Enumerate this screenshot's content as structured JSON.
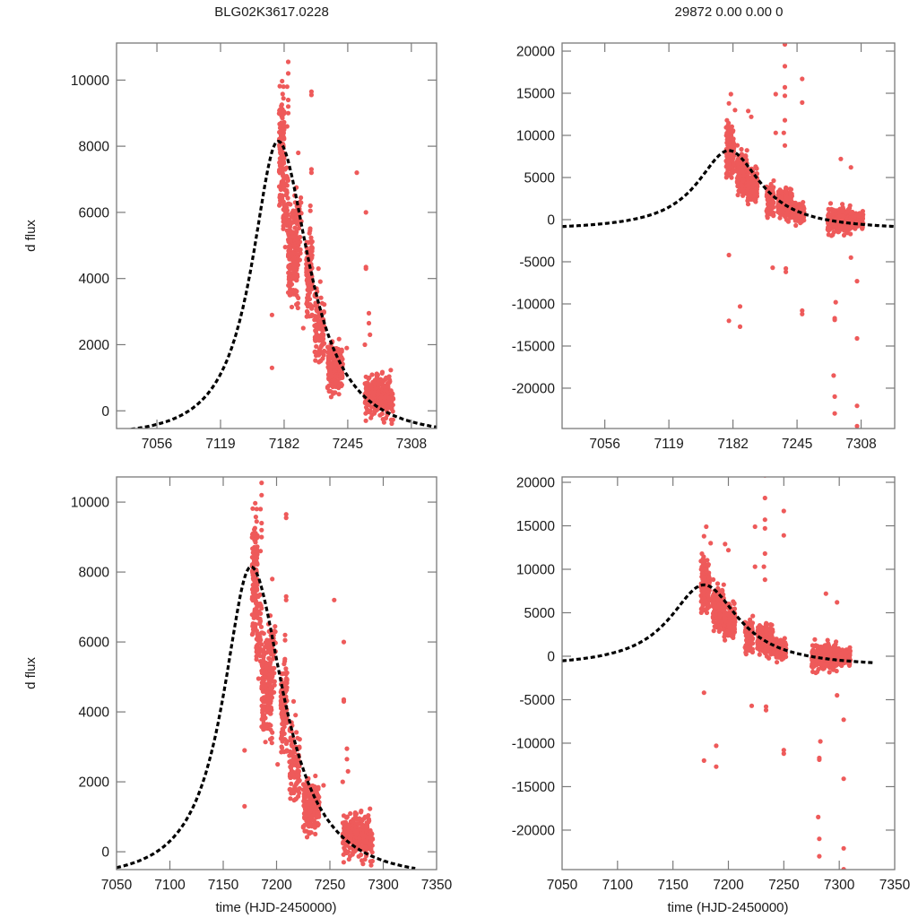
{
  "figure": {
    "title_left": "BLG02K3617.0228",
    "title_right": "29872  0.00  0.00  0",
    "colors": {
      "points": "#ee5a5a",
      "model": "#000000",
      "frame": "#7a7a7a"
    }
  },
  "chart_data": [
    {
      "id": "top-left",
      "type": "scatter",
      "title": "BLG02K3617.0228",
      "xlabel": "",
      "ylabel": "d flux",
      "xlim": [
        7016,
        7333
      ],
      "ylim": [
        -535,
        11120
      ],
      "xticks": [
        7056,
        7119,
        7182,
        7245,
        7308
      ],
      "xtick_labels": [
        "7056",
        "7119",
        "7182",
        "7245",
        "7308"
      ],
      "yticks": [
        0,
        2000,
        4000,
        6000,
        8000,
        10000
      ],
      "ytick_labels": [
        "0",
        "2000",
        "4000",
        "6000",
        "8000",
        "10000"
      ],
      "grid": false,
      "series": [
        {
          "name": "observations",
          "kind": "points",
          "dataset": "bright"
        },
        {
          "name": "model",
          "kind": "dashed-line",
          "model": "peak",
          "peak_t": 7176,
          "peak_flux": 8150,
          "rise_width": 32,
          "decay_scale": 38,
          "base": -700,
          "t_range": [
            7016,
            7333
          ]
        }
      ]
    },
    {
      "id": "top-right",
      "type": "scatter",
      "title": "29872  0.00  0.00  0",
      "xlabel": "",
      "ylabel": "",
      "xlim": [
        7014,
        7341
      ],
      "ylim": [
        -24790,
        20960
      ],
      "xticks": [
        7056,
        7119,
        7182,
        7245,
        7308
      ],
      "xtick_labels": [
        "7056",
        "7119",
        "7182",
        "7245",
        "7308"
      ],
      "yticks": [
        -20000,
        -15000,
        -10000,
        -5000,
        0,
        5000,
        10000,
        15000,
        20000
      ],
      "ytick_labels": [
        "-20000",
        "-15000",
        "-10000",
        "-5000",
        "0",
        "5000",
        "10000",
        "15000",
        "20000"
      ],
      "grid": false,
      "series": [
        {
          "name": "observations",
          "kind": "points",
          "dataset": "wide"
        },
        {
          "name": "model",
          "kind": "dashed-line",
          "model": "lorentz",
          "peak_t": 7178,
          "peak_flux": 8200,
          "width": 38,
          "base": -1300,
          "t_range": [
            7014,
            7341
          ]
        }
      ]
    },
    {
      "id": "bottom-left",
      "type": "scatter",
      "title": "",
      "xlabel": "time (HJD-2450000)",
      "ylabel": "d flux",
      "xlim": [
        7050,
        7350
      ],
      "ylim": [
        -510,
        10720
      ],
      "xticks": [
        7050,
        7100,
        7150,
        7200,
        7250,
        7300,
        7350
      ],
      "xtick_labels": [
        "7050",
        "7100",
        "7150",
        "7200",
        "7250",
        "7300",
        "7350"
      ],
      "yticks": [
        0,
        2000,
        4000,
        6000,
        8000,
        10000
      ],
      "ytick_labels": [
        "0",
        "2000",
        "4000",
        "6000",
        "8000",
        "10000"
      ],
      "grid": false,
      "series": [
        {
          "name": "observations",
          "kind": "points",
          "dataset": "bright"
        },
        {
          "name": "model",
          "kind": "dashed-line",
          "model": "peak",
          "peak_t": 7176,
          "peak_flux": 8150,
          "rise_width": 32,
          "decay_scale": 38,
          "base": -700,
          "t_range": [
            7050,
            7330
          ]
        }
      ]
    },
    {
      "id": "bottom-right",
      "type": "scatter",
      "title": "",
      "xlabel": "time (HJD-2450000)",
      "ylabel": "",
      "xlim": [
        7050,
        7350
      ],
      "ylim": [
        -24540,
        20620
      ],
      "xticks": [
        7050,
        7100,
        7150,
        7200,
        7250,
        7300,
        7350
      ],
      "xtick_labels": [
        "7050",
        "7100",
        "7150",
        "7200",
        "7250",
        "7300",
        "7350"
      ],
      "yticks": [
        -20000,
        -15000,
        -10000,
        -5000,
        0,
        5000,
        10000,
        15000,
        20000
      ],
      "ytick_labels": [
        "-20000",
        "-15000",
        "-10000",
        "-5000",
        "0",
        "5000",
        "10000",
        "15000",
        "20000"
      ],
      "grid": false,
      "series": [
        {
          "name": "observations",
          "kind": "points",
          "dataset": "wide"
        },
        {
          "name": "model",
          "kind": "dashed-line",
          "model": "lorentz",
          "peak_t": 7178,
          "peak_flux": 8200,
          "width": 38,
          "base": -1300,
          "t_range": [
            7050,
            7330
          ]
        }
      ]
    }
  ],
  "datasets": {
    "bright": {
      "description": "d flux observations (HJD-2450000, flux)",
      "clusters": [
        {
          "t": [
            7177,
            7182
          ],
          "flux": [
            5500,
            10500
          ],
          "n": 150
        },
        {
          "t": [
            7181,
            7186
          ],
          "flux": [
            4500,
            8000
          ],
          "n": 60
        },
        {
          "t": [
            7186,
            7196
          ],
          "flux": [
            2600,
            6800
          ],
          "n": 180
        },
        {
          "t": [
            7194,
            7199
          ],
          "flux": [
            4000,
            7200
          ],
          "n": 40
        },
        {
          "t": [
            7204,
            7210
          ],
          "flux": [
            2200,
            6000
          ],
          "n": 110
        },
        {
          "t": [
            7212,
            7222
          ],
          "flux": [
            900,
            4200
          ],
          "n": 120
        },
        {
          "t": [
            7225,
            7240
          ],
          "flux": [
            100,
            2500
          ],
          "n": 170
        },
        {
          "t": [
            7262,
            7290
          ],
          "flux": [
            -500,
            1400
          ],
          "n": 260
        }
      ],
      "outliers": [
        [
          7186,
          10550
        ],
        [
          7186,
          10200
        ],
        [
          7185,
          9800
        ],
        [
          7186,
          9400
        ],
        [
          7186,
          9200
        ],
        [
          7186,
          9000
        ],
        [
          7185,
          8600
        ],
        [
          7209,
          9650
        ],
        [
          7209,
          9550
        ],
        [
          7209,
          7300
        ],
        [
          7209,
          7200
        ],
        [
          7208,
          6200
        ],
        [
          7208,
          6050
        ],
        [
          7254,
          7200
        ],
        [
          7263,
          6000
        ],
        [
          7263,
          4350
        ],
        [
          7263,
          4300
        ],
        [
          7266,
          2950
        ],
        [
          7266,
          2650
        ],
        [
          7198,
          6000
        ],
        [
          7196,
          7800
        ],
        [
          7193,
          6300
        ],
        [
          7170,
          2900
        ],
        [
          7170,
          1300
        ],
        [
          7201,
          2500
        ],
        [
          7216,
          4300
        ],
        [
          7244,
          1900
        ],
        [
          7262,
          2000
        ],
        [
          7267,
          2300
        ],
        [
          7275,
          500
        ],
        [
          7288,
          400
        ]
      ]
    },
    "wide": {
      "description": "d flux observations incl. large outliers (HJD-2450000, flux)",
      "clusters": [
        {
          "t": [
            7175,
            7183
          ],
          "flux": [
            3500,
            12500
          ],
          "n": 170
        },
        {
          "t": [
            7186,
            7196
          ],
          "flux": [
            1500,
            9000
          ],
          "n": 160
        },
        {
          "t": [
            7196,
            7206
          ],
          "flux": [
            1000,
            7000
          ],
          "n": 150
        },
        {
          "t": [
            7215,
            7222
          ],
          "flux": [
            -500,
            5000
          ],
          "n": 110
        },
        {
          "t": [
            7226,
            7240
          ],
          "flux": [
            -500,
            4500
          ],
          "n": 170
        },
        {
          "t": [
            7240,
            7252
          ],
          "flux": [
            -1000,
            2500
          ],
          "n": 120
        },
        {
          "t": [
            7275,
            7298
          ],
          "flux": [
            -2500,
            2200
          ],
          "n": 260
        },
        {
          "t": [
            7298,
            7310
          ],
          "flux": [
            -1600,
            1400
          ],
          "n": 90
        }
      ],
      "outliers": [
        [
          7233,
          20800
        ],
        [
          7233,
          18200
        ],
        [
          7233,
          15700
        ],
        [
          7233,
          14700
        ],
        [
          7250,
          16700
        ],
        [
          7250,
          13900
        ],
        [
          7224,
          14900
        ],
        [
          7180,
          14900
        ],
        [
          7178,
          13800
        ],
        [
          7184,
          13000
        ],
        [
          7197,
          12900
        ],
        [
          7200,
          12200
        ],
        [
          7233,
          11800
        ],
        [
          7232,
          10300
        ],
        [
          7224,
          10300
        ],
        [
          7233,
          8800
        ],
        [
          7288,
          7200
        ],
        [
          7298,
          6200
        ],
        [
          7178,
          -4200
        ],
        [
          7178,
          -12000
        ],
        [
          7189,
          -10300
        ],
        [
          7189,
          -12700
        ],
        [
          7221,
          -5700
        ],
        [
          7234,
          -5800
        ],
        [
          7234,
          -6200
        ],
        [
          7250,
          -10800
        ],
        [
          7250,
          -11200
        ],
        [
          7282,
          -11700
        ],
        [
          7282,
          -11900
        ],
        [
          7283,
          -9800
        ],
        [
          7281,
          -18500
        ],
        [
          7282,
          -21000
        ],
        [
          7282,
          -23000
        ],
        [
          7304,
          -14100
        ],
        [
          7304,
          -22100
        ],
        [
          7304,
          -24500
        ],
        [
          7304,
          -7300
        ],
        [
          7298,
          -4500
        ]
      ]
    }
  }
}
